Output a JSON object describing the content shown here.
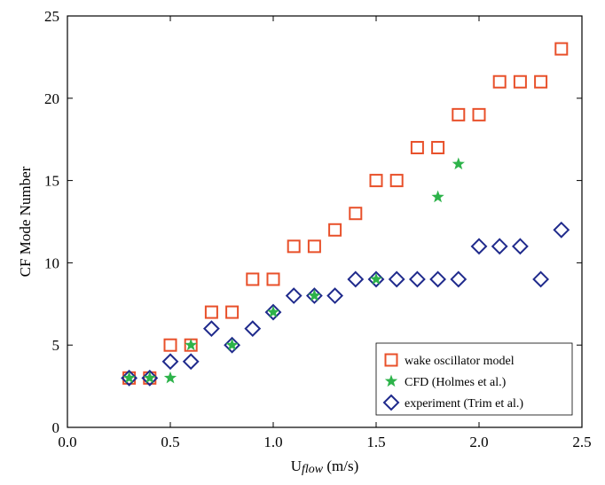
{
  "chart_data": {
    "type": "scatter",
    "xlabel_main": "U",
    "xlabel_sub": "flow",
    "xlabel_unit": " (m/s)",
    "ylabel": "CF Mode Number",
    "xlim": [
      0.0,
      2.5
    ],
    "ylim": [
      0,
      25
    ],
    "xticks": [
      0.0,
      0.5,
      1.0,
      1.5,
      2.0,
      2.5
    ],
    "xtick_labels": [
      "0.0",
      "0.5",
      "1.0",
      "1.5",
      "2.0",
      "2.5"
    ],
    "yticks": [
      0,
      5,
      10,
      15,
      20,
      25
    ],
    "ytick_labels": [
      "0",
      "5",
      "10",
      "15",
      "20",
      "25"
    ],
    "grid": false,
    "legend_position": "bottom-right",
    "series": [
      {
        "name": "wake oscillator model",
        "marker": "square",
        "color": "#E8502A",
        "x": [
          0.3,
          0.4,
          0.5,
          0.6,
          0.7,
          0.8,
          0.9,
          1.0,
          1.1,
          1.2,
          1.3,
          1.4,
          1.5,
          1.6,
          1.7,
          1.8,
          1.9,
          2.0,
          2.1,
          2.2,
          2.3,
          2.4
        ],
        "y": [
          3,
          3,
          5,
          5,
          7,
          7,
          9,
          9,
          11,
          11,
          12,
          13,
          15,
          15,
          17,
          17,
          19,
          19,
          21,
          21,
          21,
          23
        ]
      },
      {
        "name": "CFD (Holmes et al.)",
        "marker": "star",
        "color": "#2DB34A",
        "x": [
          0.3,
          0.4,
          0.5,
          0.6,
          0.8,
          1.0,
          1.2,
          1.5,
          1.8,
          1.9
        ],
        "y": [
          3,
          3,
          3,
          5,
          5,
          7,
          8,
          9,
          14,
          16
        ]
      },
      {
        "name": "experiment (Trim et al.)",
        "marker": "diamond",
        "color": "#1F2A8C",
        "x": [
          0.3,
          0.4,
          0.5,
          0.6,
          0.7,
          0.8,
          0.9,
          1.0,
          1.1,
          1.2,
          1.3,
          1.4,
          1.5,
          1.6,
          1.7,
          1.8,
          1.9,
          2.0,
          2.1,
          2.2,
          2.3,
          2.4
        ],
        "y": [
          3,
          3,
          4,
          4,
          6,
          5,
          6,
          7,
          8,
          8,
          8,
          9,
          9,
          9,
          9,
          9,
          9,
          11,
          11,
          11,
          9,
          12
        ]
      }
    ]
  }
}
